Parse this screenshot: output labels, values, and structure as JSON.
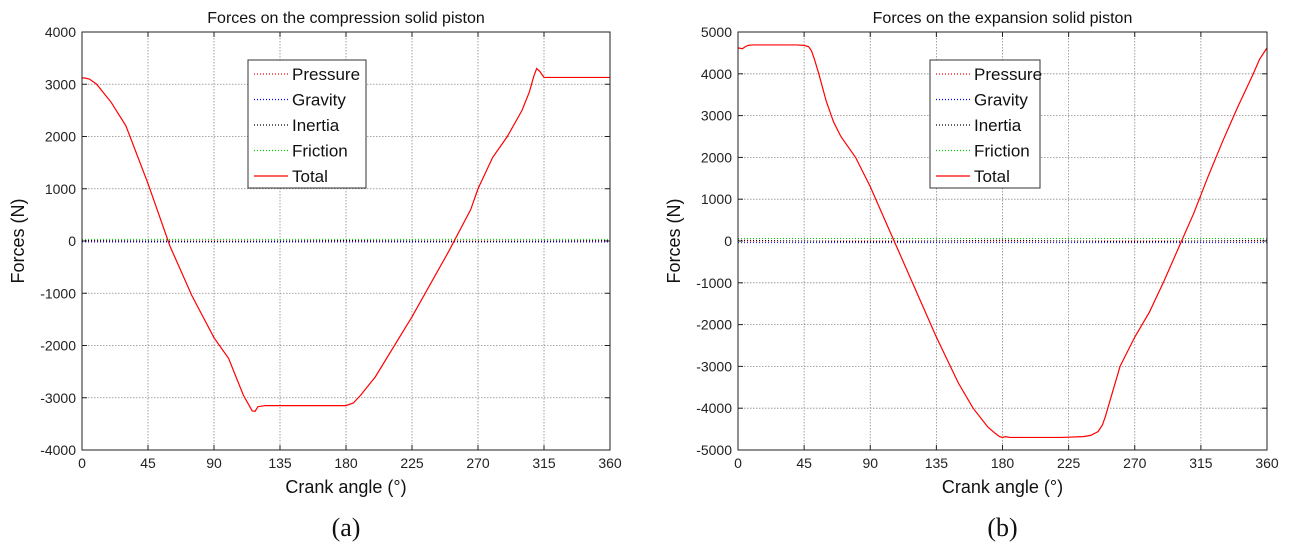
{
  "chart_data": [
    {
      "type": "line",
      "title": "Forces on the compression solid piston",
      "xlabel": "Crank angle (°)",
      "ylabel": "Forces (N)",
      "caption": "(a)",
      "xlim": [
        0,
        360
      ],
      "ylim": [
        -4000,
        4000
      ],
      "xticks": [
        0,
        45,
        90,
        135,
        180,
        225,
        270,
        315,
        360
      ],
      "yticks": [
        -4000,
        -3000,
        -2000,
        -1000,
        0,
        1000,
        2000,
        3000,
        4000
      ],
      "grid": true,
      "legend": {
        "position": "top-center",
        "entries": [
          "Pressure",
          "Gravity",
          "Inertia",
          "Friction",
          "Total"
        ]
      },
      "series": [
        {
          "name": "Pressure",
          "color": "#ff0000",
          "style": "dotted",
          "x": [
            0,
            45,
            90,
            135,
            180,
            225,
            270,
            315,
            360
          ],
          "values": [
            0,
            0,
            0,
            0,
            0,
            0,
            0,
            0,
            0
          ]
        },
        {
          "name": "Gravity",
          "color": "#0000ff",
          "style": "dotted",
          "x": [
            0,
            360
          ],
          "values": [
            -20,
            -20
          ]
        },
        {
          "name": "Inertia",
          "color": "#000000",
          "style": "dotted",
          "x": [
            0,
            90,
            180,
            270,
            360
          ],
          "values": [
            10,
            -10,
            10,
            -10,
            10
          ]
        },
        {
          "name": "Friction",
          "color": "#00cc00",
          "style": "dotted",
          "x": [
            0,
            360
          ],
          "values": [
            30,
            30
          ]
        },
        {
          "name": "Total",
          "color": "#ff0000",
          "style": "solid",
          "x": [
            0,
            2,
            5,
            10,
            20,
            30,
            45,
            60,
            75,
            90,
            100,
            105,
            110,
            114,
            116,
            118,
            120,
            125,
            135,
            150,
            165,
            180,
            185,
            190,
            200,
            225,
            250,
            265,
            270,
            280,
            290,
            300,
            305,
            308,
            310,
            312,
            315,
            330,
            345,
            360
          ],
          "values": [
            3120,
            3120,
            3100,
            3000,
            2650,
            2200,
            1100,
            -100,
            -1050,
            -1850,
            -2250,
            -2600,
            -2950,
            -3150,
            -3250,
            -3260,
            -3170,
            -3150,
            -3150,
            -3150,
            -3150,
            -3150,
            -3100,
            -2950,
            -2600,
            -1450,
            -200,
            600,
            1000,
            1600,
            2000,
            2500,
            2850,
            3150,
            3300,
            3250,
            3130,
            3130,
            3130,
            3130
          ]
        }
      ]
    },
    {
      "type": "line",
      "title": "Forces on the expansion solid piston",
      "xlabel": "Crank angle (°)",
      "ylabel": "Forces (N)",
      "caption": "(b)",
      "xlim": [
        0,
        360
      ],
      "ylim": [
        -5000,
        5000
      ],
      "xticks": [
        0,
        45,
        90,
        135,
        180,
        225,
        270,
        315,
        360
      ],
      "yticks": [
        -5000,
        -4000,
        -3000,
        -2000,
        -1000,
        0,
        1000,
        2000,
        3000,
        4000,
        5000
      ],
      "grid": true,
      "legend": {
        "position": "top-center",
        "entries": [
          "Pressure",
          "Gravity",
          "Inertia",
          "Friction",
          "Total"
        ]
      },
      "series": [
        {
          "name": "Pressure",
          "color": "#ff0000",
          "style": "dotted",
          "x": [
            0,
            45,
            90,
            135,
            180,
            225,
            270,
            315,
            360
          ],
          "values": [
            0,
            0,
            0,
            0,
            0,
            0,
            0,
            0,
            0
          ]
        },
        {
          "name": "Gravity",
          "color": "#0000ff",
          "style": "dotted",
          "x": [
            0,
            360
          ],
          "values": [
            -40,
            -40
          ]
        },
        {
          "name": "Inertia",
          "color": "#000000",
          "style": "dotted",
          "x": [
            0,
            90,
            180,
            270,
            360
          ],
          "values": [
            20,
            -20,
            20,
            -20,
            20
          ]
        },
        {
          "name": "Friction",
          "color": "#00cc00",
          "style": "dotted",
          "x": [
            0,
            360
          ],
          "values": [
            60,
            60
          ]
        },
        {
          "name": "Total",
          "color": "#ff0000",
          "style": "solid",
          "x": [
            0,
            3,
            5,
            7,
            10,
            20,
            30,
            40,
            45,
            48,
            50,
            52,
            55,
            60,
            65,
            70,
            80,
            90,
            100,
            110,
            120,
            135,
            150,
            160,
            170,
            175,
            178,
            180,
            182,
            185,
            200,
            220,
            235,
            240,
            245,
            248,
            250,
            255,
            260,
            270,
            280,
            290,
            300,
            310,
            320,
            330,
            340,
            350,
            355,
            360
          ],
          "values": [
            4620,
            4600,
            4650,
            4680,
            4690,
            4690,
            4690,
            4690,
            4680,
            4650,
            4550,
            4350,
            4000,
            3350,
            2850,
            2500,
            2000,
            1300,
            500,
            -300,
            -1100,
            -2300,
            -3400,
            -4000,
            -4450,
            -4600,
            -4680,
            -4700,
            -4680,
            -4700,
            -4700,
            -4700,
            -4680,
            -4650,
            -4560,
            -4400,
            -4200,
            -3600,
            -3000,
            -2300,
            -1700,
            -950,
            -150,
            650,
            1550,
            2400,
            3200,
            3950,
            4350,
            4620
          ]
        }
      ]
    }
  ]
}
